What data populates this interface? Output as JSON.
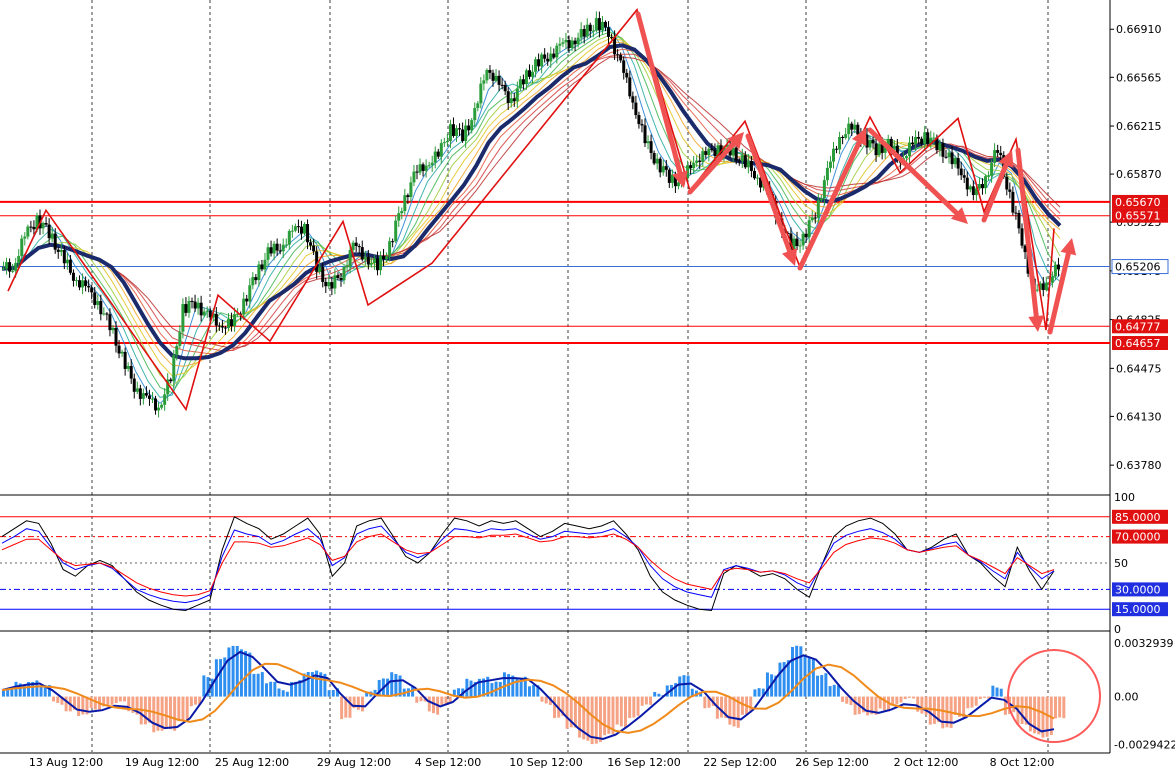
{
  "chart_data": [
    {
      "type": "candlestick",
      "panel": "price",
      "price_ticks": [
        "0.66910",
        "0.66565",
        "0.66215",
        "0.65870",
        "0.65525",
        "0.65175",
        "0.64825",
        "0.64475",
        "0.64130",
        "0.63780"
      ],
      "price_tick_values": [
        0.6691,
        0.66565,
        0.66215,
        0.6587,
        0.65525,
        0.65175,
        0.64825,
        0.64475,
        0.6413,
        0.6378
      ],
      "ylim": [
        0.6358,
        0.6712
      ],
      "current_price": {
        "label": "0.65206",
        "value": 0.65206
      },
      "levels": [
        {
          "label": "0.65670",
          "value": 0.6567
        },
        {
          "label": "0.65571",
          "value": 0.65571
        },
        {
          "label": "0.64777",
          "value": 0.64777
        },
        {
          "label": "0.64657",
          "value": 0.64657
        }
      ],
      "zigzag": [
        0.6503,
        0.6561,
        0.6514,
        0.6418,
        0.65,
        0.6467,
        0.6553,
        0.6493,
        0.6523,
        0.6705,
        0.6575,
        0.6625,
        0.652,
        0.6628,
        0.6588,
        0.6627,
        0.656,
        0.6612,
        0.6475,
        0.6548
      ],
      "close_path": [
        0.6519,
        0.652,
        0.6542,
        0.6555,
        0.6545,
        0.6528,
        0.6514,
        0.6505,
        0.6495,
        0.6478,
        0.6455,
        0.6435,
        0.6425,
        0.642,
        0.644,
        0.649,
        0.6495,
        0.6485,
        0.648,
        0.6478,
        0.6495,
        0.6515,
        0.653,
        0.6535,
        0.6545,
        0.655,
        0.652,
        0.6505,
        0.6515,
        0.6535,
        0.6528,
        0.652,
        0.6535,
        0.6565,
        0.6585,
        0.6595,
        0.66,
        0.662,
        0.6615,
        0.663,
        0.6665,
        0.665,
        0.664,
        0.6655,
        0.6665,
        0.6672,
        0.6678,
        0.6683,
        0.6688,
        0.6695,
        0.669,
        0.6665,
        0.664,
        0.661,
        0.6595,
        0.6585,
        0.658,
        0.6598,
        0.66,
        0.6606,
        0.6604,
        0.6596,
        0.6588,
        0.6575,
        0.6555,
        0.6535,
        0.654,
        0.656,
        0.6588,
        0.6615,
        0.662,
        0.6612,
        0.6605,
        0.6608,
        0.6598,
        0.6608,
        0.6615,
        0.6608,
        0.6598,
        0.659,
        0.657,
        0.6585,
        0.6605,
        0.657,
        0.654,
        0.65,
        0.651,
        0.652
      ],
      "x_labels": [
        "13 Aug 12:00",
        "19 Aug 12:00",
        "25 Aug 12:00",
        "29 Aug 12:00",
        "4 Sep 12:00",
        "10 Sep 12:00",
        "16 Sep 12:00",
        "22 Sep 12:00",
        "26 Sep 12:00",
        "2 Oct 12:00",
        "8 Oct 12:00"
      ]
    },
    {
      "type": "line",
      "panel": "oscillator",
      "ticks": [
        "100",
        "85.0000",
        "70.0000",
        "50",
        "30.0000",
        "15.0000",
        "0"
      ],
      "tick_values": [
        100,
        85,
        70,
        50,
        30,
        15,
        0
      ],
      "ylim": [
        0,
        100
      ],
      "levels": [
        85,
        70,
        30,
        15
      ],
      "series": [
        {
          "color": "#000000",
          "values": [
            70,
            76,
            82,
            80,
            65,
            45,
            40,
            48,
            52,
            48,
            38,
            28,
            22,
            18,
            15,
            14,
            18,
            22,
            60,
            85,
            80,
            76,
            68,
            72,
            78,
            84,
            72,
            40,
            50,
            78,
            82,
            84,
            70,
            55,
            50,
            58,
            72,
            84,
            82,
            78,
            82,
            80,
            82,
            76,
            70,
            74,
            80,
            78,
            76,
            78,
            82,
            72,
            60,
            40,
            28,
            22,
            18,
            15,
            14,
            42,
            48,
            45,
            40,
            42,
            38,
            30,
            24,
            48,
            70,
            78,
            82,
            84,
            80,
            72,
            60,
            58,
            62,
            68,
            72,
            56,
            50,
            40,
            32,
            62,
            44,
            30,
            44
          ]
        },
        {
          "color": "#0000ff",
          "values": [
            65,
            70,
            76,
            74,
            62,
            50,
            45,
            48,
            50,
            46,
            38,
            30,
            26,
            23,
            21,
            20,
            22,
            26,
            55,
            75,
            72,
            70,
            64,
            67,
            72,
            76,
            68,
            48,
            54,
            72,
            76,
            78,
            68,
            58,
            54,
            58,
            68,
            76,
            75,
            73,
            76,
            75,
            76,
            72,
            68,
            70,
            74,
            73,
            72,
            73,
            76,
            70,
            62,
            48,
            38,
            32,
            28,
            26,
            24,
            45,
            48,
            46,
            43,
            44,
            41,
            35,
            31,
            48,
            65,
            71,
            74,
            76,
            73,
            68,
            60,
            58,
            61,
            64,
            66,
            56,
            51,
            44,
            38,
            58,
            47,
            38,
            44
          ]
        },
        {
          "color": "#ff0000",
          "values": [
            60,
            64,
            68,
            68,
            60,
            52,
            48,
            49,
            50,
            47,
            41,
            35,
            31,
            28,
            26,
            25,
            26,
            29,
            50,
            66,
            66,
            65,
            62,
            63,
            66,
            69,
            64,
            52,
            55,
            66,
            70,
            72,
            66,
            60,
            57,
            58,
            64,
            70,
            70,
            69,
            71,
            71,
            72,
            69,
            66,
            67,
            70,
            70,
            69,
            70,
            72,
            68,
            62,
            52,
            44,
            38,
            34,
            32,
            30,
            44,
            46,
            45,
            43,
            44,
            42,
            38,
            35,
            46,
            58,
            64,
            67,
            69,
            68,
            65,
            60,
            58,
            60,
            62,
            63,
            56,
            52,
            47,
            42,
            54,
            48,
            42,
            45
          ]
        }
      ]
    },
    {
      "type": "bar",
      "panel": "macd",
      "ticks": [
        "0.0032939",
        "0.00",
        "-0.0029422"
      ],
      "tick_values": [
        0.0032939,
        0,
        -0.0029422
      ],
      "ylim": [
        -0.0034,
        0.0039
      ],
      "histogram": [
        0.0004,
        0.0008,
        0.001,
        0.0006,
        -0.0004,
        -0.0008,
        -0.0012,
        -0.0008,
        -0.0005,
        -0.0004,
        -0.001,
        -0.0016,
        -0.0022,
        -0.002,
        -0.0014,
        -0.0006,
        0.0012,
        0.0024,
        0.003,
        0.0028,
        0.0015,
        0.0008,
        0.0004,
        0.001,
        0.0014,
        0.0015,
        0.0005,
        -0.0014,
        -0.0008,
        0.0004,
        0.001,
        0.0014,
        0.0006,
        -0.0004,
        -0.001,
        -0.0004,
        0.0004,
        0.001,
        0.0012,
        0.0008,
        0.0014,
        0.0012,
        0.0006,
        -0.0004,
        -0.0012,
        -0.002,
        -0.0026,
        -0.0028,
        -0.0024,
        -0.0018,
        -0.0012,
        -0.0006,
        0.0002,
        0.0008,
        0.0012,
        0.0004,
        -0.0006,
        -0.0014,
        -0.0018,
        -0.001,
        0.0004,
        0.0014,
        0.0022,
        0.003,
        0.0024,
        0.0014,
        0.0006,
        -0.0004,
        -0.001,
        -0.0012,
        -0.0008,
        -0.0004,
        -0.0002,
        -0.001,
        -0.0016,
        -0.002,
        -0.0012,
        -0.0006,
        -0.0002,
        0.0006,
        -0.001,
        -0.0018,
        -0.0022,
        -0.0024,
        -0.0014
      ]
    }
  ],
  "annotation": {
    "circle_color": "#ff5a5a"
  }
}
